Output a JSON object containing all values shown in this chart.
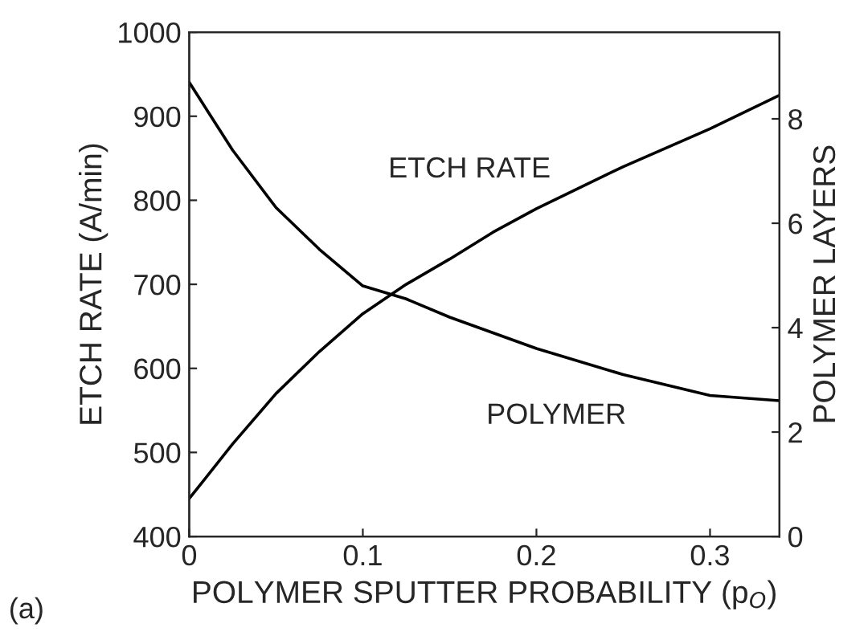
{
  "chart_data": {
    "type": "line",
    "xlabel": "POLYMER SPUTTER PROBABILITY (p$_{O}$)",
    "ylabel": "ETCH RATE (A/min)",
    "y2label": "POLYMER LAYERS",
    "annotations": [
      "(a)"
    ],
    "x": [
      0,
      0.025,
      0.05,
      0.075,
      0.1,
      0.125,
      0.15,
      0.175,
      0.2,
      0.25,
      0.3,
      0.34
    ],
    "xlim": [
      0,
      0.34
    ],
    "xticks": [
      0,
      0.1,
      0.2,
      0.3
    ],
    "ylim": [
      400,
      1000
    ],
    "yticks": [
      400,
      500,
      600,
      700,
      800,
      900,
      1000
    ],
    "y2lim": [
      0,
      9.66
    ],
    "y2ticks": [
      0,
      2,
      4,
      6,
      8
    ],
    "grid": false,
    "legend": false,
    "marker": "none",
    "line_style": "solid",
    "series": [
      {
        "name": "ETCH RATE",
        "color": "#000000",
        "values": [
          445,
          510,
          570,
          620,
          665,
          700,
          730,
          762,
          790,
          840,
          885,
          925
        ]
      },
      {
        "name": "POLYMER",
        "color": "#000000",
        "axis": "y2",
        "values": [
          8.7,
          7.4,
          6.3,
          5.5,
          4.8,
          4.55,
          4.2,
          3.9,
          3.6,
          3.1,
          2.7,
          2.6
        ]
      }
    ]
  }
}
